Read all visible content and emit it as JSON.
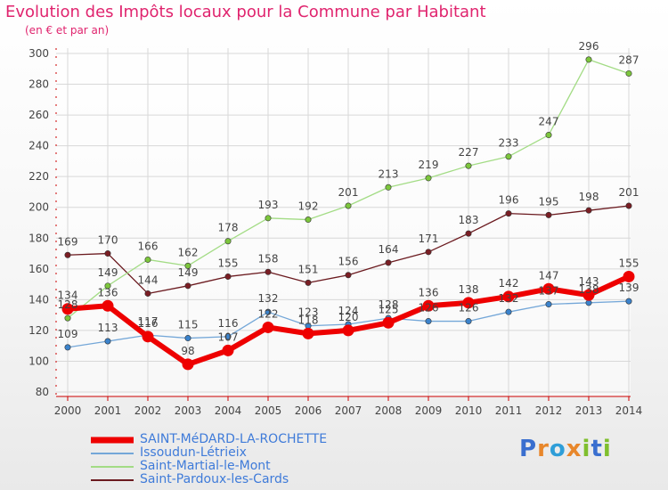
{
  "header": {
    "title": "Evolution des Impôts locaux pour la Commune par Habitant",
    "subtitle": "(en € et par an)"
  },
  "colors": {
    "title": "#e0246e",
    "axis": "#cc0000",
    "grid": "#d8d8d8",
    "legend_text": "#3f7bd9"
  },
  "logo": {
    "text": "Proxiti",
    "letters": [
      "P",
      "r",
      "o",
      "x",
      "i",
      "t",
      "i"
    ],
    "letter_colors": [
      "#3a6fcf",
      "#e8872b",
      "#2f9ed8",
      "#e8872b",
      "#7fbf2e",
      "#3a6fcf",
      "#7fbf2e"
    ]
  },
  "chart_data": {
    "type": "line",
    "title": "Evolution des Impôts locaux pour la Commune par Habitant",
    "subtitle": "(en € et par an)",
    "xlabel": "",
    "ylabel": "",
    "x": [
      "2000",
      "2001",
      "2002",
      "2003",
      "2004",
      "2005",
      "2006",
      "2007",
      "2008",
      "2009",
      "2010",
      "2011",
      "2012",
      "2013",
      "2014"
    ],
    "ylim": [
      80,
      300
    ],
    "yticks": [
      80,
      100,
      120,
      140,
      160,
      180,
      200,
      220,
      240,
      260,
      280,
      300
    ],
    "grid": true,
    "legend_position": "bottom-left",
    "series": [
      {
        "name": "Saint-Pardoux-les-Cards",
        "color": "#6b1a1f",
        "marker": "#7a1e24",
        "width": 1.3,
        "values": [
          169,
          170,
          144,
          149,
          155,
          158,
          151,
          156,
          164,
          171,
          183,
          196,
          195,
          198,
          201
        ]
      },
      {
        "name": "Saint-Martial-le-Mont",
        "color": "#a3dc85",
        "marker": "#7cc63c",
        "width": 1.3,
        "values": [
          128,
          149,
          166,
          162,
          178,
          193,
          192,
          201,
          213,
          219,
          227,
          233,
          247,
          296,
          287
        ]
      },
      {
        "name": "Issoudun-Létrieix",
        "color": "#74a7d8",
        "marker": "#3b83cc",
        "width": 1.3,
        "values": [
          109,
          113,
          117,
          115,
          116,
          132,
          123,
          124,
          128,
          126,
          126,
          132,
          137,
          138,
          139
        ]
      },
      {
        "name": "SAINT-MéDARD-LA-ROCHETTE",
        "color": "#ee0000",
        "marker": "#ee0000",
        "width": 6,
        "values": [
          134,
          136,
          116,
          98,
          107,
          122,
          118,
          120,
          125,
          136,
          138,
          142,
          147,
          143,
          155
        ]
      }
    ],
    "legend_order": [
      "SAINT-MéDARD-LA-ROCHETTE",
      "Issoudun-Létrieix",
      "Saint-Martial-le-Mont",
      "Saint-Pardoux-les-Cards"
    ]
  }
}
